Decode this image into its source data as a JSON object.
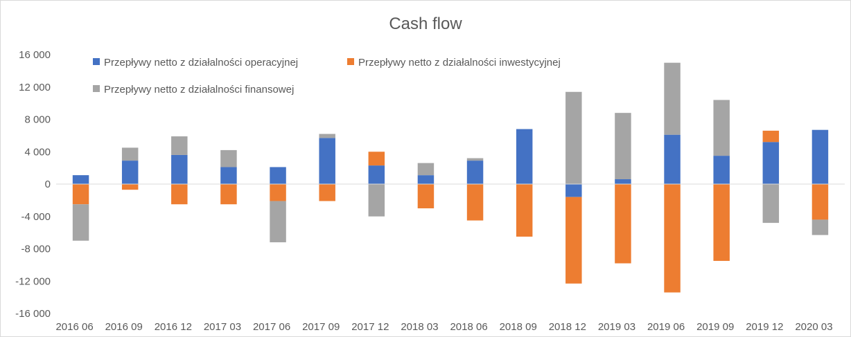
{
  "chart_data": {
    "type": "bar",
    "stacked": true,
    "title": "Cash flow",
    "xlabel": "",
    "ylabel": "",
    "ylim": [
      -16000,
      16000
    ],
    "yticks": [
      16000,
      12000,
      8000,
      4000,
      0,
      -4000,
      -8000,
      -12000,
      -16000
    ],
    "ytick_labels": [
      "16 000",
      "12 000",
      "8 000",
      "4 000",
      "0",
      "-4 000",
      "-8 000",
      "-12 000",
      "-16 000"
    ],
    "grid": false,
    "legend_position": "top-left",
    "categories": [
      "2016 06",
      "2016 09",
      "2016 12",
      "2017 03",
      "2017 06",
      "2017 09",
      "2017 12",
      "2018 03",
      "2018 06",
      "2018 09",
      "2018 12",
      "2019 03",
      "2019 06",
      "2019 09",
      "2019 12",
      "2020 03"
    ],
    "series": [
      {
        "name": "Przepływy netto z działalności operacyjnej",
        "color": "#4472C4",
        "values": [
          1100,
          2900,
          3600,
          2100,
          2100,
          5700,
          2300,
          1100,
          2900,
          6800,
          -1600,
          600,
          6100,
          3500,
          5200,
          6700
        ]
      },
      {
        "name": "Przepływy netto z działalności inwestycyjnej",
        "color": "#ED7D31",
        "values": [
          -2500,
          -700,
          -2500,
          -2500,
          -2100,
          -2100,
          1700,
          -3000,
          -4500,
          -6500,
          -10700,
          -9800,
          -13400,
          -9500,
          1400,
          -4400
        ]
      },
      {
        "name": "Przepływy netto z działalności finansowej",
        "color": "#A5A5A5",
        "values": [
          -4500,
          1600,
          2300,
          2100,
          -5100,
          500,
          -4000,
          1500,
          300,
          0,
          11400,
          8200,
          8900,
          6900,
          -4800,
          -1900
        ]
      }
    ]
  }
}
